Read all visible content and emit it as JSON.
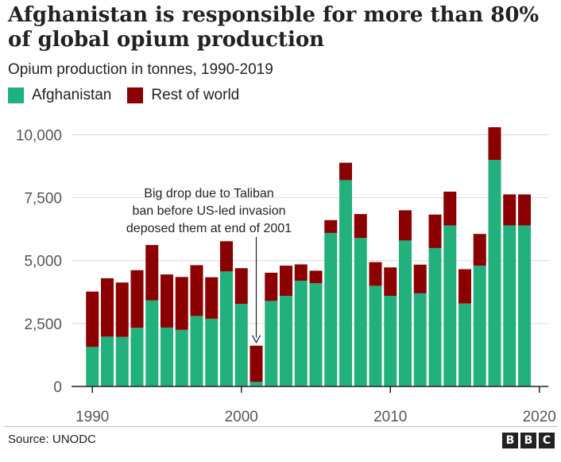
{
  "title": "Afghanistan is responsible for more than 80% of global opium production",
  "subtitle": "Opium production in tonnes, 1990-2019",
  "source": "Source: UNODC",
  "brand_letters": [
    "B",
    "B",
    "C"
  ],
  "colors": {
    "afghanistan": "#22b07d",
    "rest_of_world": "#8b0000",
    "axis": "#222222",
    "grid": "#d9d9d9"
  },
  "chart_data": {
    "type": "bar",
    "stacked": true,
    "title": "Afghanistan is responsible for more than 80% of global opium production",
    "subtitle": "Opium production in tonnes, 1990-2019",
    "x": [
      1990,
      1991,
      1992,
      1993,
      1994,
      1995,
      1996,
      1997,
      1998,
      1999,
      2000,
      2001,
      2002,
      2003,
      2004,
      2005,
      2006,
      2007,
      2008,
      2009,
      2010,
      2011,
      2012,
      2013,
      2014,
      2015,
      2016,
      2017,
      2018,
      2019
    ],
    "series": [
      {
        "name": "Afghanistan",
        "values": [
          1570,
          1980,
          1970,
          2330,
          3420,
          2340,
          2250,
          2800,
          2690,
          4570,
          3280,
          180,
          3400,
          3600,
          4200,
          4100,
          6100,
          8200,
          5900,
          4000,
          3600,
          5800,
          3700,
          5500,
          6400,
          3300,
          4800,
          9000,
          6400,
          6400
        ]
      },
      {
        "name": "Rest of world",
        "values": [
          2200,
          2320,
          2160,
          2290,
          2200,
          2110,
          2100,
          2020,
          1650,
          1200,
          1420,
          1440,
          1120,
          1200,
          650,
          500,
          510,
          690,
          950,
          940,
          1130,
          1200,
          1140,
          1330,
          1340,
          1360,
          1260,
          1300,
          1230,
          1230
        ]
      }
    ],
    "yticks": [
      "0",
      "2,500",
      "5,000",
      "7,500",
      "10,000"
    ],
    "ytick_values": [
      0,
      2500,
      5000,
      7500,
      10000
    ],
    "xticks": [
      "1990",
      "2000",
      "2010",
      "2020"
    ],
    "xtick_values": [
      1990,
      2000,
      2010,
      2020
    ],
    "ylim": [
      0,
      10300
    ],
    "xlim": [
      1988.6,
      2020.6
    ],
    "grid": "horizontal",
    "legend": "top-left",
    "annotation": {
      "lines": [
        "Big drop due to Taliban",
        "ban before US-led invasion",
        "deposed them at end of 2001"
      ],
      "year": 2001
    }
  }
}
